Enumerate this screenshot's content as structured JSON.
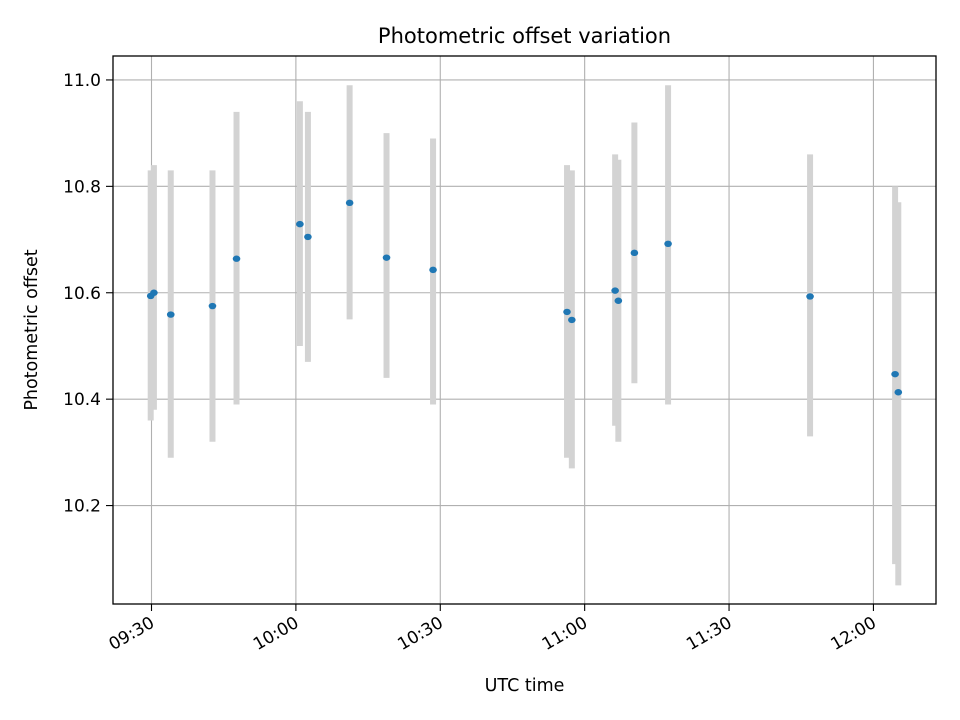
{
  "chart_data": {
    "type": "scatter",
    "title": "Photometric offset variation",
    "xlabel": "UTC time",
    "ylabel": "Photometric offset",
    "x_ticks": [
      "09:30",
      "10:00",
      "10:30",
      "11:00",
      "11:30",
      "12:00"
    ],
    "y_ticks": [
      "10.2",
      "10.4",
      "10.6",
      "10.8",
      "11.0"
    ],
    "xlim": [
      "09:22:00",
      "12:13:00"
    ],
    "ylim": [
      10.015,
      11.045
    ],
    "grid": true,
    "point_color": "#1f77b4",
    "errorbar_color": "#d3d3d3",
    "points": [
      {
        "t": "09:29:50",
        "y": 10.594,
        "lo": 10.36,
        "hi": 10.83
      },
      {
        "t": "09:30:30",
        "y": 10.6,
        "lo": 10.38,
        "hi": 10.84
      },
      {
        "t": "09:34:00",
        "y": 10.559,
        "lo": 10.29,
        "hi": 10.83
      },
      {
        "t": "09:42:40",
        "y": 10.575,
        "lo": 10.32,
        "hi": 10.83
      },
      {
        "t": "09:47:40",
        "y": 10.664,
        "lo": 10.39,
        "hi": 10.94
      },
      {
        "t": "10:00:50",
        "y": 10.729,
        "lo": 10.5,
        "hi": 10.96
      },
      {
        "t": "10:02:30",
        "y": 10.705,
        "lo": 10.47,
        "hi": 10.94
      },
      {
        "t": "10:11:10",
        "y": 10.769,
        "lo": 10.55,
        "hi": 10.99
      },
      {
        "t": "10:18:50",
        "y": 10.666,
        "lo": 10.44,
        "hi": 10.9
      },
      {
        "t": "10:28:30",
        "y": 10.643,
        "lo": 10.39,
        "hi": 10.89
      },
      {
        "t": "10:56:20",
        "y": 10.564,
        "lo": 10.29,
        "hi": 10.84
      },
      {
        "t": "10:57:20",
        "y": 10.549,
        "lo": 10.27,
        "hi": 10.83
      },
      {
        "t": "11:06:20",
        "y": 10.604,
        "lo": 10.35,
        "hi": 10.86
      },
      {
        "t": "11:07:00",
        "y": 10.585,
        "lo": 10.32,
        "hi": 10.85
      },
      {
        "t": "11:10:20",
        "y": 10.675,
        "lo": 10.43,
        "hi": 10.92
      },
      {
        "t": "11:17:20",
        "y": 10.692,
        "lo": 10.39,
        "hi": 10.99
      },
      {
        "t": "11:46:50",
        "y": 10.593,
        "lo": 10.33,
        "hi": 10.86
      },
      {
        "t": "12:04:30",
        "y": 10.447,
        "lo": 10.09,
        "hi": 10.8
      },
      {
        "t": "12:05:10",
        "y": 10.413,
        "lo": 10.05,
        "hi": 10.77
      }
    ]
  }
}
